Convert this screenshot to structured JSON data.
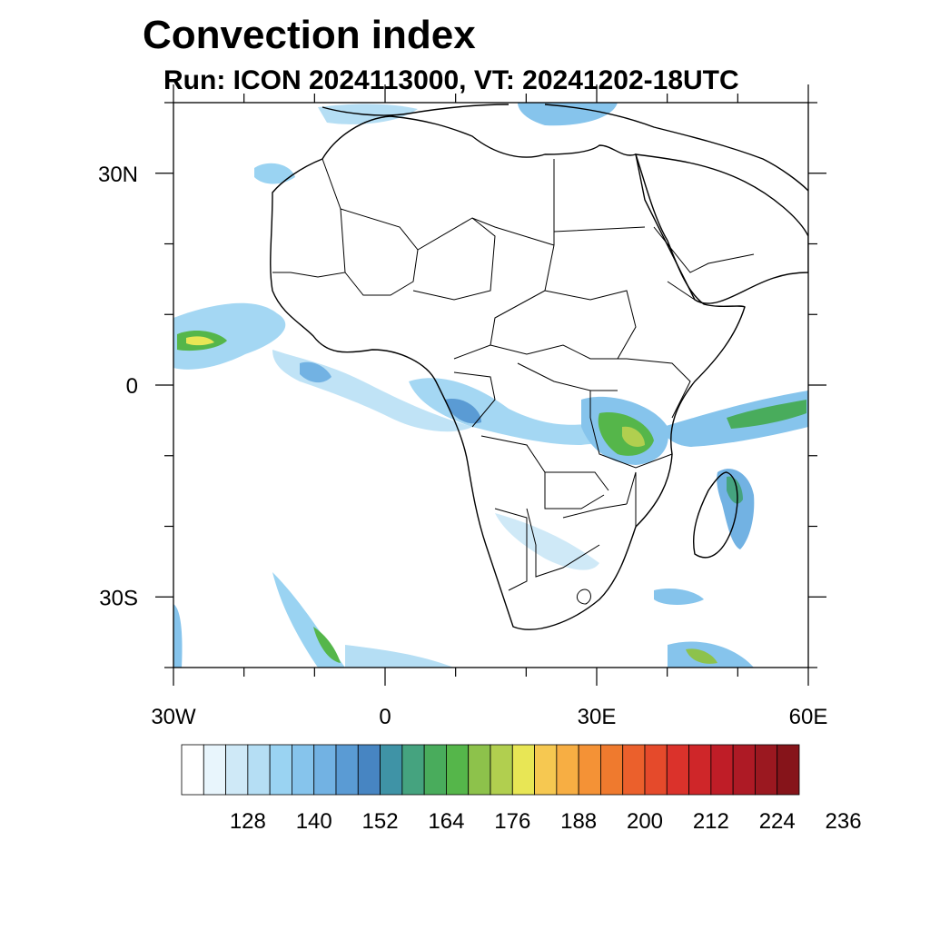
{
  "title": "Convection index",
  "subtitle": "Run: ICON 2024113000,  VT: 20241202-18UTC",
  "map": {
    "lon_range": [
      -30,
      60
    ],
    "lat_range": [
      -40,
      40
    ],
    "x_ticks": [
      {
        "lon": -30,
        "label": "30W"
      },
      {
        "lon": 0,
        "label": "0"
      },
      {
        "lon": 30,
        "label": "30E"
      },
      {
        "lon": 60,
        "label": "60E"
      }
    ],
    "y_ticks": [
      {
        "lat": 30,
        "label": "30N"
      },
      {
        "lat": 0,
        "label": "0"
      },
      {
        "lat": -30,
        "label": "30S"
      }
    ]
  },
  "colorbar": {
    "colors": [
      "#ffffff",
      "#e8f5fc",
      "#cfe9f7",
      "#b5def4",
      "#9ad3f2",
      "#86c4ec",
      "#72b2e3",
      "#5a9bd4",
      "#4785c2",
      "#3f93a6",
      "#45a37f",
      "#49ac5c",
      "#55b64a",
      "#8dc24b",
      "#b1cf4f",
      "#e8e655",
      "#f6c851",
      "#f7ae43",
      "#f49236",
      "#ef7a2e",
      "#eb602c",
      "#e54a2b",
      "#db322b",
      "#cf2629",
      "#bf1d27",
      "#ae1a25",
      "#9b1820",
      "#86141a"
    ],
    "labels": [
      "128",
      "140",
      "152",
      "164",
      "176",
      "188",
      "200",
      "212",
      "224",
      "236"
    ]
  }
}
